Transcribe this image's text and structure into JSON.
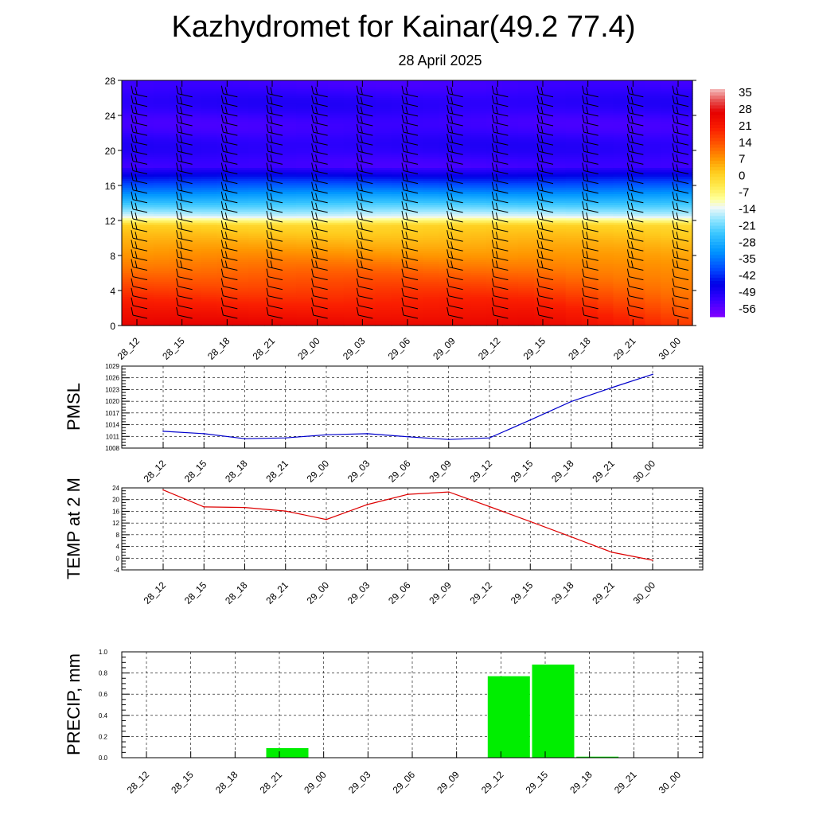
{
  "title": "Kazhydromet for Kainar(49.2 77.4)",
  "subtitle": "28 April 2025",
  "time_labels": [
    "28_12",
    "28_15",
    "28_18",
    "28_21",
    "29_00",
    "29_03",
    "29_06",
    "29_09",
    "29_12",
    "29_15",
    "29_18",
    "29_21",
    "30_00"
  ],
  "chart_data": [
    {
      "type": "heatmap",
      "ylim": [
        0,
        28
      ],
      "y_ticks": [
        "0",
        "4",
        "8",
        "12",
        "16",
        "20",
        "24",
        "28"
      ],
      "x_ticks": [
        "28_12",
        "28_15",
        "28_18",
        "28_21",
        "29_00",
        "29_03",
        "29_06",
        "29_09",
        "29_12",
        "29_15",
        "29_18",
        "29_21",
        "30_00"
      ],
      "colorbar_labels": [
        "35",
        "28",
        "21",
        "14",
        "7",
        "0",
        "-7",
        "-14",
        "-21",
        "-28",
        "-35",
        "-42",
        "-49",
        "-56"
      ],
      "colorbar_range": [
        -60,
        38
      ],
      "wind_barbs": true
    },
    {
      "type": "line",
      "ylabel": "PMSL",
      "ylim": [
        1008,
        1029
      ],
      "y_ticks": [
        "1008",
        "1011",
        "1014",
        "1017",
        "1020",
        "1023",
        "1026",
        "1029"
      ],
      "x": [
        "28_12",
        "28_15",
        "28_18",
        "28_21",
        "29_00",
        "29_03",
        "29_06",
        "29_09",
        "29_12",
        "29_15",
        "29_18",
        "29_21",
        "30_00"
      ],
      "series": [
        {
          "values": [
            1012.3,
            1011.7,
            1010.4,
            1010.6,
            1011.4,
            1011.7,
            1010.9,
            1010.2,
            1010.6,
            1015.2,
            1019.9,
            1023.5,
            1026.9
          ],
          "color": "#0000cc"
        }
      ],
      "grid": true
    },
    {
      "type": "line",
      "ylabel": "TEMP at 2 M",
      "ylim": [
        -4,
        24
      ],
      "y_ticks": [
        "-4",
        "0",
        "4",
        "8",
        "12",
        "16",
        "20",
        "24"
      ],
      "x": [
        "28_12",
        "28_15",
        "28_18",
        "28_21",
        "29_00",
        "29_03",
        "29_06",
        "29_09",
        "29_12",
        "29_15",
        "29_18",
        "29_21",
        "30_00"
      ],
      "series": [
        {
          "values": [
            23.3,
            17.5,
            17.3,
            16.1,
            13.2,
            18.3,
            21.8,
            22.6,
            17.6,
            12.5,
            7.3,
            2.0,
            -0.7
          ],
          "color": "#dd0000"
        }
      ],
      "grid": true
    },
    {
      "type": "bar",
      "ylabel": "PRECIP, mm",
      "ylim": [
        0,
        1.0
      ],
      "y_ticks": [
        "0.0",
        "0.2",
        "0.4",
        "0.6",
        "0.8",
        "1.0"
      ],
      "categories": [
        "28_12",
        "28_15",
        "28_18",
        "28_21",
        "29_00",
        "29_03",
        "29_06",
        "29_09",
        "29_12",
        "29_15",
        "29_18",
        "29_21",
        "30_00"
      ],
      "values": [
        0,
        0,
        0,
        0.09,
        0,
        0,
        0,
        0,
        0.77,
        0.88,
        0.01,
        0,
        0
      ],
      "color": "#00ee00",
      "grid": true
    }
  ]
}
